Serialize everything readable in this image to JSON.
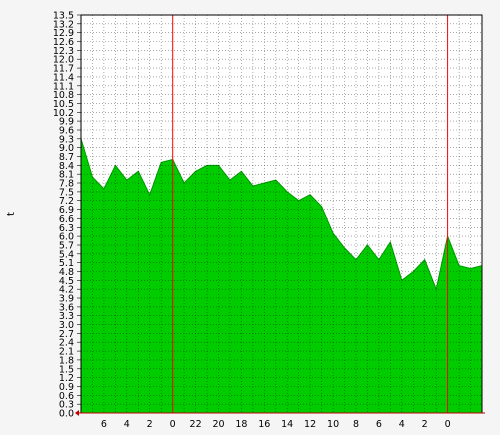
{
  "chart_data": {
    "type": "area",
    "title": "",
    "xlabel": "",
    "ylabel": "t",
    "ylim": [
      0,
      13.5
    ],
    "y_ticks": [
      "0.0",
      "0.3",
      "0.6",
      "0.9",
      "1.2",
      "1.5",
      "1.8",
      "2.1",
      "2.4",
      "2.7",
      "3.0",
      "3.3",
      "3.6",
      "3.9",
      "4.2",
      "4.5",
      "4.8",
      "5.1",
      "5.4",
      "5.7",
      "6.0",
      "6.3",
      "6.6",
      "6.9",
      "7.2",
      "7.5",
      "7.8",
      "8.1",
      "8.4",
      "8.7",
      "9.0",
      "9.3",
      "9.6",
      "9.9",
      "10.2",
      "10.5",
      "10.8",
      "11.1",
      "11.4",
      "11.7",
      "12.0",
      "12.3",
      "12.6",
      "12.9",
      "13.2",
      "13.5"
    ],
    "x_ticks": [
      "6",
      "4",
      "2",
      "0",
      "22",
      "20",
      "18",
      "16",
      "14",
      "12",
      "10",
      "8",
      "6",
      "4",
      "2",
      "0"
    ],
    "x_tick_hour_offsets": [
      2,
      4,
      6,
      8,
      10,
      12,
      14,
      16,
      18,
      20,
      22,
      24,
      26,
      28,
      30,
      32
    ],
    "x_range_hours": [
      0,
      35
    ],
    "day_boundary_hour_offsets": [
      8,
      32
    ],
    "grid": true,
    "legend": "none",
    "fill_color": "#00cc00",
    "line_color": "#009900",
    "boundary_color": "#ff0000",
    "series": [
      {
        "x": [
          0,
          1,
          2,
          3,
          4,
          5,
          6,
          7,
          8,
          9,
          10,
          11,
          12,
          13,
          14,
          15,
          16,
          17,
          18,
          19,
          20,
          21,
          22,
          23,
          24,
          25,
          26,
          27,
          28,
          29,
          30,
          31,
          32,
          33,
          34,
          35
        ],
        "values": [
          9.3,
          8.0,
          7.6,
          8.4,
          7.9,
          8.2,
          7.4,
          8.5,
          8.6,
          7.8,
          8.2,
          8.4,
          8.4,
          7.9,
          8.2,
          7.7,
          7.8,
          7.9,
          7.5,
          7.2,
          7.4,
          7.0,
          6.1,
          5.6,
          5.2,
          5.7,
          5.2,
          5.8,
          4.5,
          4.8,
          5.2,
          4.2,
          6.0,
          5.0,
          4.9,
          5.0
        ]
      }
    ]
  }
}
